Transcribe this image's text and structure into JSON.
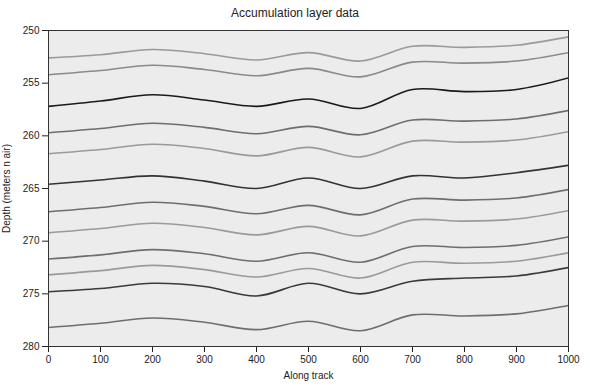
{
  "chart_data": {
    "type": "line",
    "title": "Accumulation layer data",
    "x_label": "Along track",
    "y_label": "Depth (meters n air)",
    "x": [
      0,
      100,
      200,
      300,
      400,
      500,
      600,
      700,
      800,
      900,
      1000
    ],
    "series": [
      {
        "color": "#9a9a9a",
        "values": [
          252.6,
          252.3,
          251.8,
          252.2,
          252.8,
          252.1,
          252.9,
          251.5,
          251.6,
          251.4,
          250.6
        ]
      },
      {
        "color": "#8a8a8a",
        "values": [
          254.2,
          253.8,
          253.3,
          253.7,
          254.3,
          253.6,
          254.4,
          253.0,
          253.1,
          252.9,
          252.1
        ]
      },
      {
        "color": "#1a1a1a",
        "values": [
          257.2,
          256.7,
          256.1,
          256.6,
          257.2,
          256.5,
          257.4,
          255.6,
          255.8,
          255.6,
          254.5
        ]
      },
      {
        "color": "#6e6e6e",
        "values": [
          259.7,
          259.3,
          258.8,
          259.2,
          259.8,
          259.1,
          259.9,
          258.5,
          258.6,
          258.4,
          257.6
        ]
      },
      {
        "color": "#9a9a9a",
        "values": [
          261.7,
          261.3,
          260.8,
          261.2,
          261.9,
          261.1,
          262.0,
          260.5,
          260.6,
          260.4,
          259.6
        ]
      },
      {
        "color": "#333333",
        "values": [
          264.6,
          264.2,
          263.8,
          264.3,
          265.0,
          264.0,
          265.0,
          263.8,
          264.0,
          263.5,
          262.8
        ]
      },
      {
        "color": "#6e6e6e",
        "values": [
          267.2,
          266.8,
          266.3,
          266.7,
          267.4,
          266.6,
          267.5,
          266.0,
          266.1,
          265.9,
          265.1
        ]
      },
      {
        "color": "#9a9a9a",
        "values": [
          269.2,
          268.8,
          268.3,
          268.7,
          269.4,
          268.6,
          269.5,
          268.0,
          268.1,
          267.9,
          267.1
        ]
      },
      {
        "color": "#6e6e6e",
        "values": [
          271.7,
          271.3,
          270.8,
          271.2,
          271.9,
          271.1,
          272.0,
          270.5,
          270.6,
          270.4,
          269.6
        ]
      },
      {
        "color": "#9a9a9a",
        "values": [
          273.2,
          272.8,
          272.3,
          272.7,
          273.4,
          272.6,
          273.5,
          272.0,
          272.1,
          271.9,
          271.1
        ]
      },
      {
        "color": "#3a3a3a",
        "values": [
          274.8,
          274.5,
          274.0,
          274.3,
          275.2,
          274.0,
          275.0,
          273.8,
          273.5,
          273.3,
          272.5
        ]
      },
      {
        "color": "#6e6e6e",
        "values": [
          278.2,
          277.8,
          277.3,
          277.7,
          278.4,
          277.6,
          278.5,
          277.0,
          277.1,
          276.9,
          276.1
        ]
      }
    ],
    "xlim": [
      0,
      1000
    ],
    "xticks": [
      0,
      100,
      200,
      300,
      400,
      500,
      600,
      700,
      800,
      900,
      1000
    ],
    "ylim": [
      250,
      280
    ],
    "yticks": [
      250,
      255,
      260,
      265,
      270,
      275,
      280
    ],
    "grid": false
  }
}
